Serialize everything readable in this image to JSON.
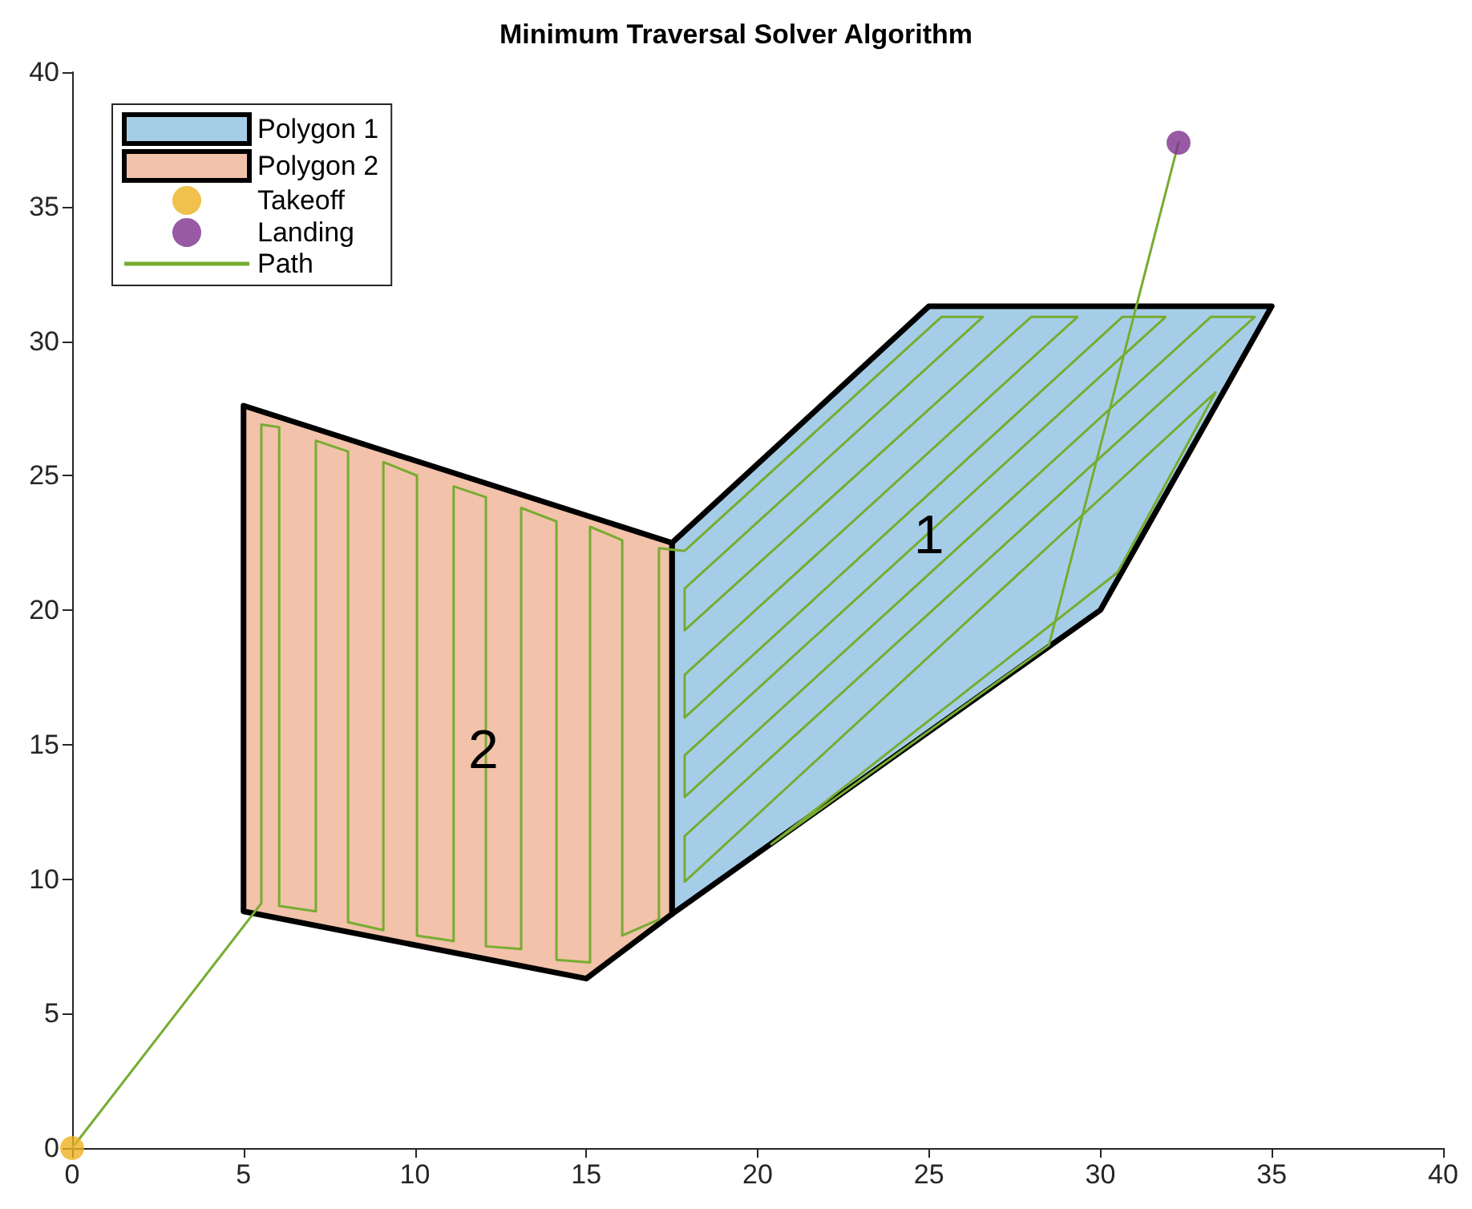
{
  "chart_data": {
    "type": "line",
    "title": "Minimum Traversal Solver Algorithm",
    "xlim": [
      0,
      40
    ],
    "ylim": [
      0,
      40
    ],
    "xticks": [
      0,
      5,
      10,
      15,
      20,
      25,
      30,
      35,
      40
    ],
    "yticks": [
      0,
      5,
      10,
      15,
      20,
      25,
      30,
      35,
      40
    ],
    "grid": false,
    "legend": "top left",
    "series": [
      {
        "name": "Polygon 1",
        "type": "area",
        "color": "#a6cde8",
        "x": [
          17.5,
          25,
          35,
          30,
          17.5
        ],
        "values": [
          22.5,
          31.3,
          31.3,
          20,
          8.7
        ]
      },
      {
        "name": "Polygon 2",
        "type": "area",
        "color": "#f2c2aa",
        "x": [
          5,
          17.5,
          17.5,
          15,
          5
        ],
        "values": [
          27.6,
          22.5,
          8.7,
          6.3,
          8.8
        ]
      },
      {
        "name": "Takeoff",
        "type": "scatter",
        "color": "#edb120",
        "marker": "circle",
        "x": [
          0
        ],
        "values": [
          0
        ]
      },
      {
        "name": "Landing",
        "type": "scatter",
        "color": "#7e2f8e",
        "marker": "circle",
        "x": [
          32.28
        ],
        "values": [
          37.38
        ]
      },
      {
        "name": "Path",
        "color": "#77ac30",
        "marker": "none",
        "x": [
          0,
          5.52,
          5.52,
          6.04,
          6.04,
          7.11,
          7.11,
          8.05,
          8.05,
          9.08,
          9.08,
          10.06,
          10.06,
          11.13,
          11.13,
          12.07,
          12.07,
          13.1,
          13.1,
          14.13,
          14.13,
          15.11,
          15.11,
          16.05,
          16.05,
          17.12,
          17.12,
          17.87,
          25.36,
          26.57,
          17.87,
          17.87,
          27.98,
          29.33,
          17.87,
          17.87,
          30.64,
          31.9,
          17.87,
          17.87,
          33.22,
          34.5,
          17.87,
          17.87,
          33.36,
          30.5,
          20.4,
          28.5,
          32.28
        ],
        "values": [
          0,
          9.1,
          26.9,
          26.8,
          9.0,
          8.8,
          26.3,
          25.9,
          8.4,
          8.1,
          25.5,
          25.0,
          7.9,
          7.7,
          24.6,
          24.2,
          7.5,
          7.4,
          23.8,
          23.3,
          7.0,
          6.9,
          23.1,
          22.6,
          7.9,
          8.5,
          22.3,
          22.2,
          30.9,
          30.9,
          20.8,
          19.25,
          30.9,
          30.9,
          17.6,
          16.0,
          30.9,
          30.9,
          14.6,
          13.05,
          30.9,
          30.9,
          11.6,
          9.9,
          28.1,
          21.4,
          11.3,
          18.7,
          37.38
        ]
      }
    ],
    "annotations": [
      "1",
      "2"
    ]
  }
}
